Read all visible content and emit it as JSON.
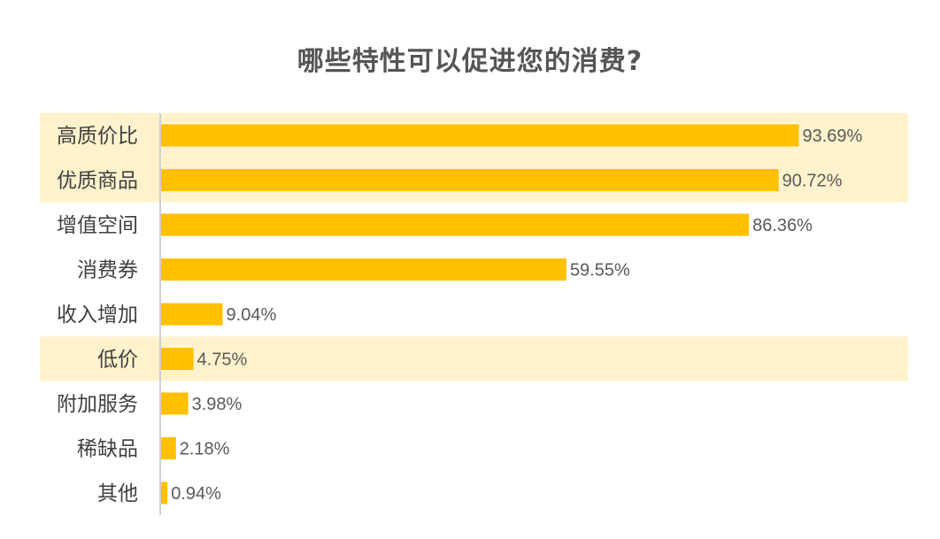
{
  "chart_data": {
    "type": "bar",
    "orientation": "horizontal",
    "title": "哪些特性可以促进您的消费?",
    "categories": [
      "高质价比",
      "优质商品",
      "增值空间",
      "消费券",
      "收入增加",
      "低价",
      "附加服务",
      "稀缺品",
      "其他"
    ],
    "values": [
      93.69,
      90.72,
      86.36,
      59.55,
      9.04,
      4.75,
      3.98,
      2.18,
      0.94
    ],
    "value_labels": [
      "93.69%",
      "90.72%",
      "86.36%",
      "59.55%",
      "9.04%",
      "4.75%",
      "3.98%",
      "2.18%",
      "0.94%"
    ],
    "highlighted": [
      "高质价比",
      "优质商品",
      "低价"
    ],
    "xlim": [
      0,
      100
    ],
    "grid": false,
    "legend": "none",
    "colors": {
      "bar": "#FFC000",
      "highlight_band": "#FFF2CC",
      "axis": "#D0D0D0",
      "title": "#555555"
    }
  }
}
